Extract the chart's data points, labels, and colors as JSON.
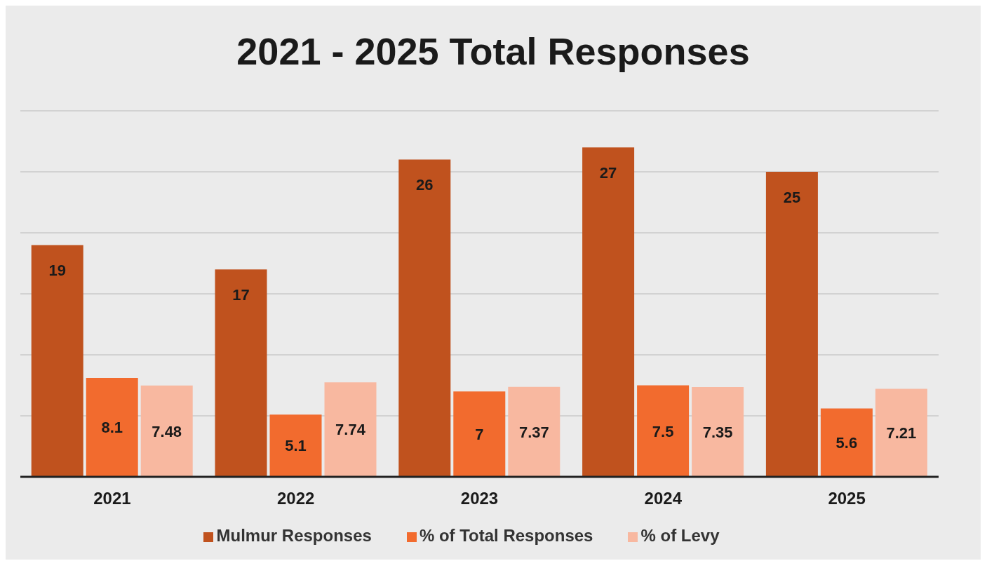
{
  "chart_data": {
    "type": "bar",
    "title": "2021 - 2025 Total Responses",
    "categories": [
      "2021",
      "2022",
      "2023",
      "2024",
      "2025"
    ],
    "series": [
      {
        "name": "Mulmur Responses",
        "color": "#c0521e",
        "values": [
          19,
          17,
          26,
          27,
          25
        ]
      },
      {
        "name": "% of Total Responses",
        "color": "#f26b2e",
        "values": [
          8.1,
          5.1,
          7,
          7.5,
          5.6
        ]
      },
      {
        "name": "% of Levy",
        "color": "#f8b8a0",
        "values": [
          7.48,
          7.74,
          7.37,
          7.35,
          7.21
        ]
      }
    ],
    "ylim": [
      0,
      30
    ],
    "yticks": [
      {
        "value": 0,
        "label": null
      },
      {
        "value": 5,
        "label": null
      },
      {
        "value": 10,
        "label": null
      },
      {
        "value": 15,
        "label": null
      },
      {
        "value": 20,
        "label": null
      },
      {
        "value": 25,
        "label": null
      },
      {
        "value": 30,
        "label": null
      }
    ],
    "tick_labels": "x",
    "grid": "y",
    "data_labels": true,
    "legend": "bottom"
  }
}
